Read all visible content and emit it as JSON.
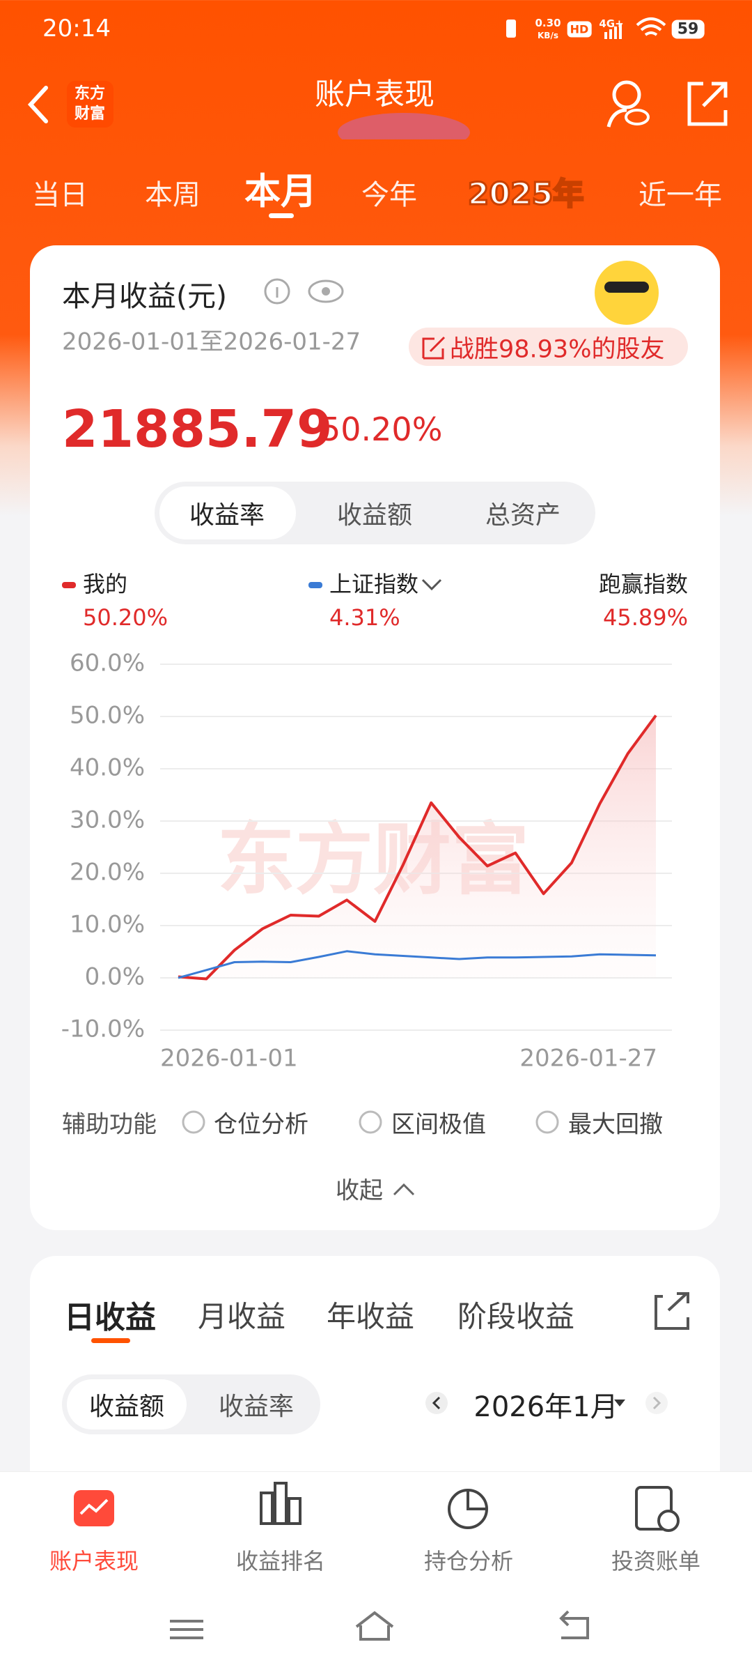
{
  "status_bar": {
    "time": "20:14",
    "net_speed": "0.30",
    "net_unit": "KB/s",
    "hd": "HD",
    "network": "4G+",
    "battery": "59"
  },
  "header": {
    "logo": [
      "东方",
      "财富"
    ],
    "title": "账户表现"
  },
  "period_tabs": [
    "当日",
    "本周",
    "本月",
    "今年",
    "2025年",
    "近一年"
  ],
  "summary": {
    "title": "本月收益(元)",
    "date_range": "2026-01-01至2026-01-27",
    "badge": "战胜98.93%的股友",
    "amount": "21885.79",
    "rate": "50.20%"
  },
  "chart_switch": [
    "收益率",
    "收益额",
    "总资产"
  ],
  "chart_data": {
    "type": "line",
    "watermark": "东方财富",
    "categories": [
      "2026-01-01",
      null,
      null,
      null,
      null,
      null,
      null,
      null,
      null,
      null,
      null,
      null,
      null,
      null,
      null,
      null,
      null,
      "2026-01-27"
    ],
    "series": [
      {
        "name": "我的",
        "color": "#e02a2a",
        "value_label": "50.20%",
        "values": [
          0.2,
          -0.2,
          5.3,
          9.4,
          12.0,
          11.8,
          14.9,
          10.8,
          21.6,
          33.5,
          26.9,
          21.4,
          23.9,
          16.1,
          22.0,
          33.3,
          42.9,
          50.2
        ]
      },
      {
        "name": "上证指数",
        "color": "#3a7bd5",
        "value_label": "4.31%",
        "values": [
          0,
          1.5,
          3.0,
          3.1,
          3.0,
          4.0,
          5.1,
          4.5,
          4.2,
          3.9,
          3.6,
          3.9,
          3.9,
          4.0,
          4.1,
          4.5,
          4.4,
          4.31
        ]
      }
    ],
    "outperform": {
      "label": "跑赢指数",
      "value": "45.89%"
    },
    "ylim": [
      -10,
      60
    ],
    "yticks": [
      {
        "value": 60,
        "label": "60.0%"
      },
      {
        "value": 50,
        "label": "50.0%"
      },
      {
        "value": 40,
        "label": "40.0%"
      },
      {
        "value": 30,
        "label": "30.0%"
      },
      {
        "value": 20,
        "label": "20.0%"
      },
      {
        "value": 10,
        "label": "10.0%"
      },
      {
        "value": 0,
        "label": "0.0%"
      },
      {
        "value": -10,
        "label": "-10.0%"
      }
    ],
    "grid": true
  },
  "tools": {
    "label": "辅助功能",
    "options": [
      "仓位分析",
      "区间极值",
      "最大回撤"
    ],
    "collapse": "收起"
  },
  "detail": {
    "tabs": [
      "日收益",
      "月收益",
      "年收益",
      "阶段收益"
    ],
    "switch": [
      "收益额",
      "收益率"
    ],
    "month": "2026年1月"
  },
  "bottom_nav": [
    "账户表现",
    "收益排名",
    "持仓分析",
    "投资账单"
  ]
}
